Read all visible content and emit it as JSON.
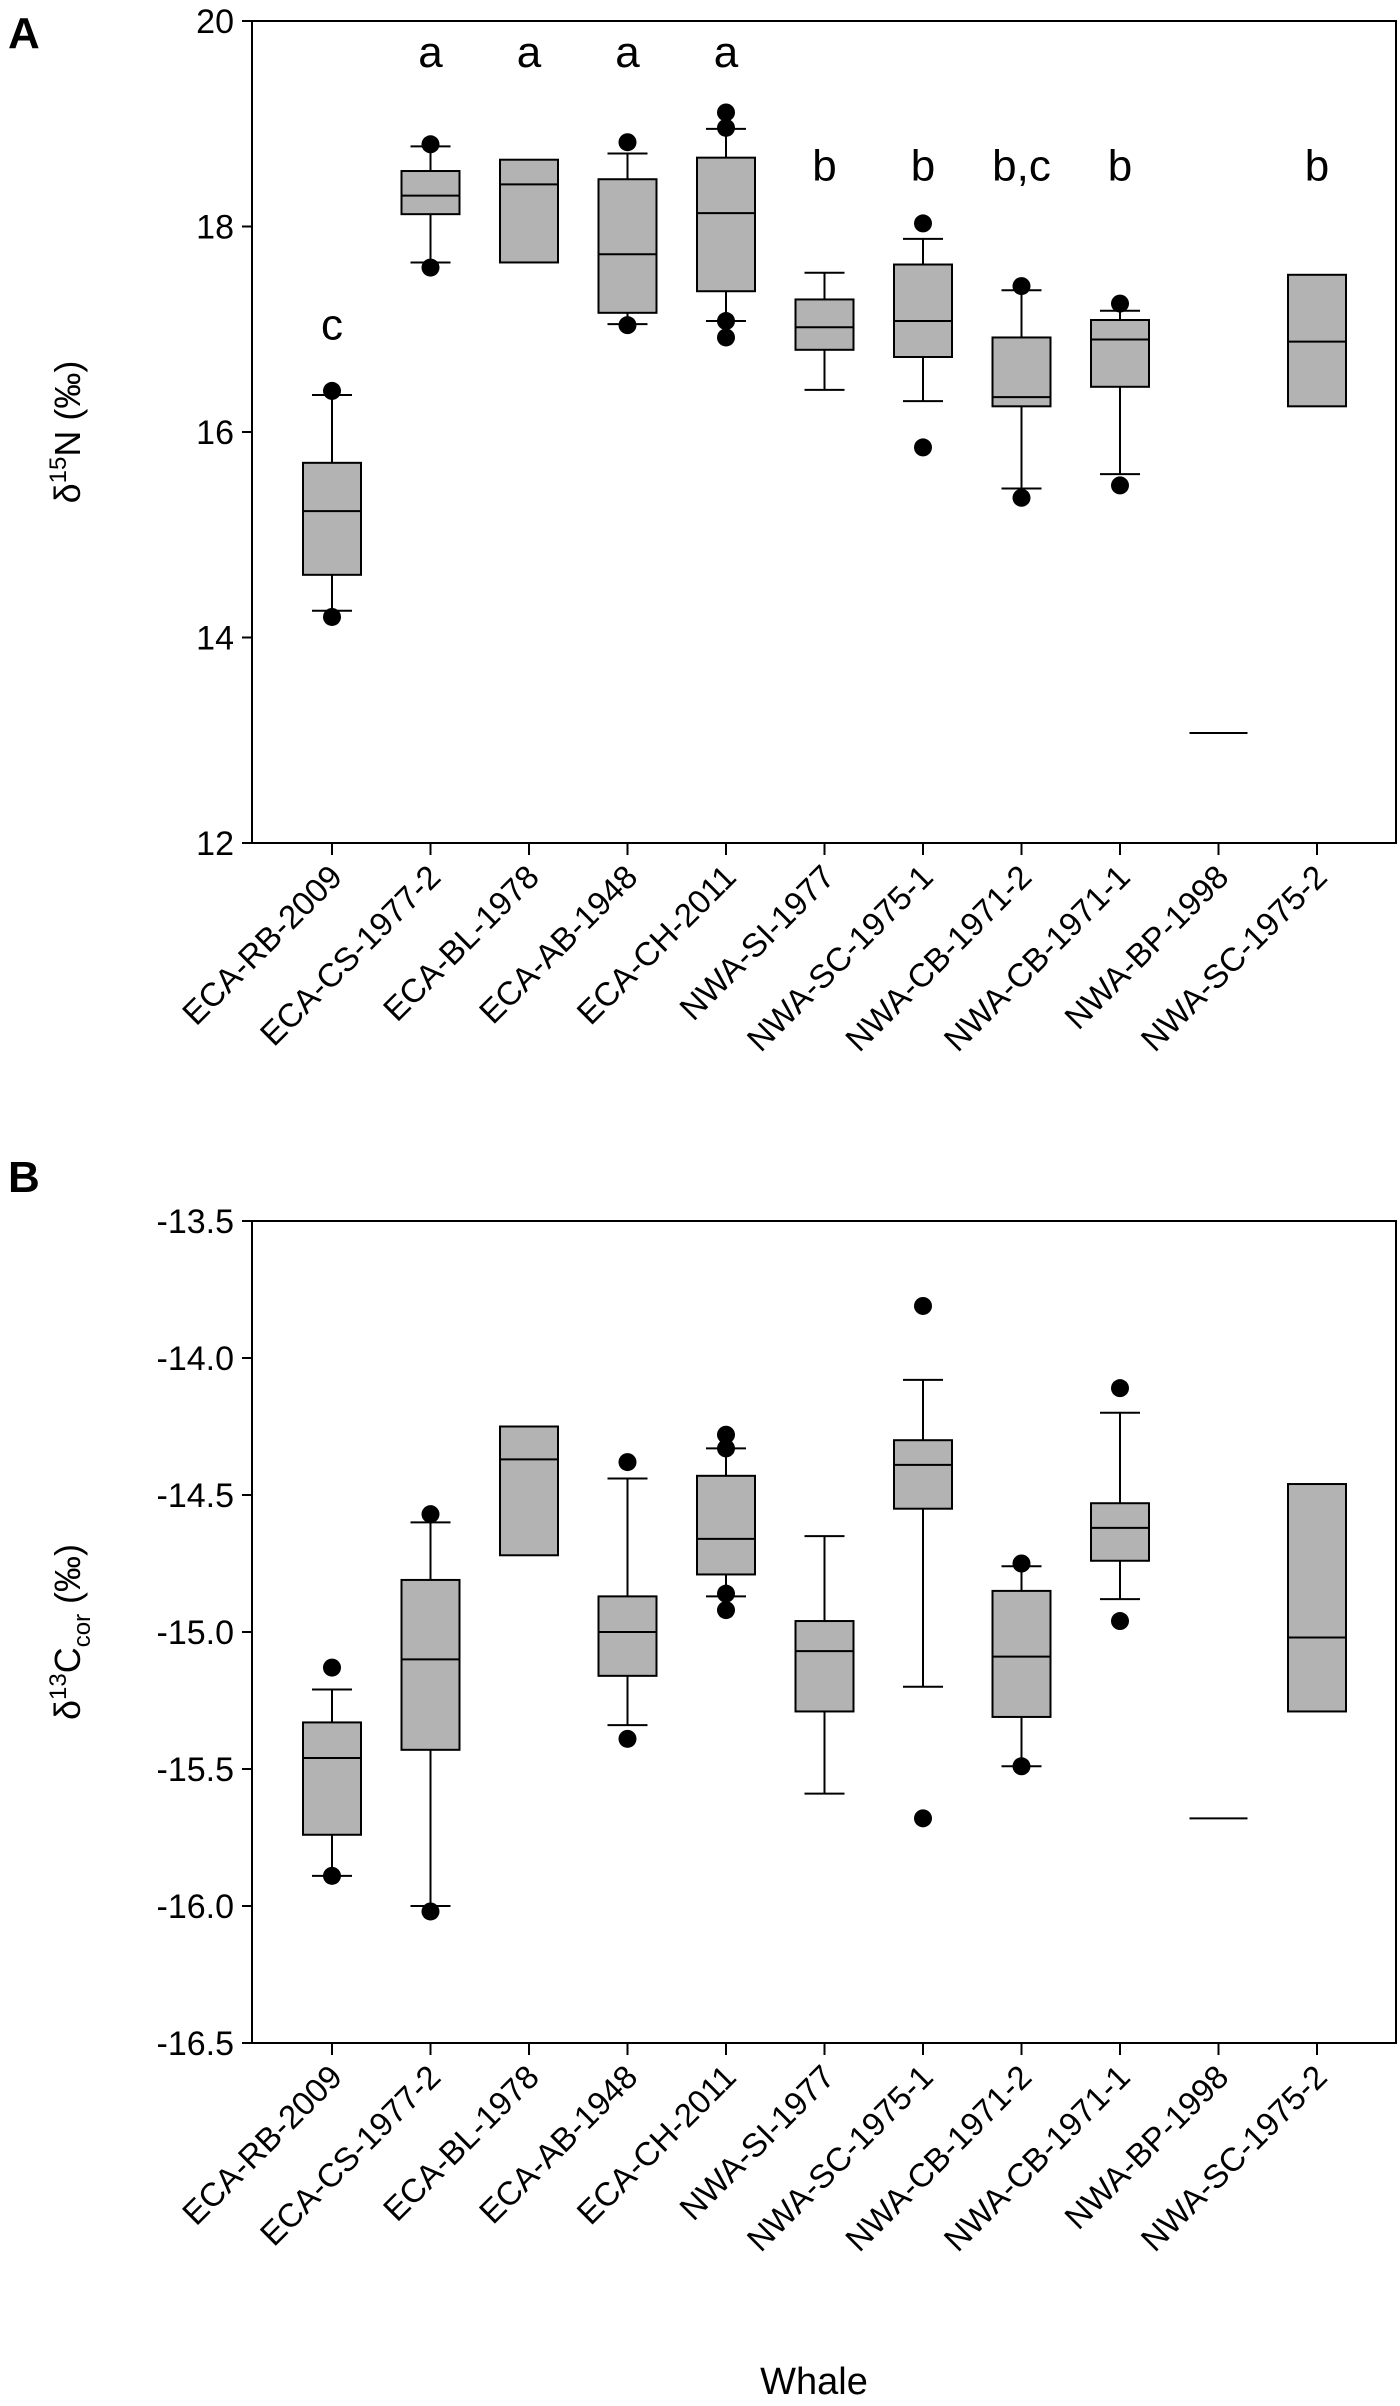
{
  "chart_data": [
    {
      "type": "box",
      "panel_label": "A",
      "ylabel": {
        "prefix": "δ",
        "sup": "15",
        "main": "N",
        "sub": "",
        "unit": " (‰)"
      },
      "ylim": [
        12,
        20
      ],
      "yticks": [
        12,
        14,
        16,
        18,
        20
      ],
      "ytick_labels": [
        "12",
        "14",
        "16",
        "18",
        "20"
      ],
      "grid": false,
      "categories": [
        "ECA-RB-2009",
        "ECA-CS-1977-2",
        "ECA-BL-1978",
        "ECA-AB-1948",
        "ECA-CH-2011",
        "NWA-SI-1977",
        "NWA-SC-1975-1",
        "NWA-CB-1971-2",
        "NWA-CB-1971-1",
        "NWA-BP-1998",
        "NWA-SC-1975-2"
      ],
      "group_letters": [
        "c",
        "a",
        "a",
        "a",
        "a",
        "b",
        "b",
        "b,c",
        "b",
        "",
        "b"
      ],
      "boxes": [
        {
          "whisker_low": 14.26,
          "q1": 14.61,
          "median": 15.23,
          "q3": 15.7,
          "whisker_high": 16.36,
          "outliers": [
            16.4,
            14.2
          ]
        },
        {
          "whisker_low": 17.65,
          "q1": 18.12,
          "median": 18.3,
          "q3": 18.54,
          "whisker_high": 18.78,
          "outliers": [
            18.8,
            17.6
          ]
        },
        {
          "whisker_low": null,
          "q1": 17.65,
          "median": 18.41,
          "q3": 18.65,
          "whisker_high": null,
          "outliers": []
        },
        {
          "whisker_low": 17.05,
          "q1": 17.16,
          "median": 17.73,
          "q3": 18.46,
          "whisker_high": 18.71,
          "outliers": [
            18.82,
            17.04
          ]
        },
        {
          "whisker_low": 17.08,
          "q1": 17.37,
          "median": 18.13,
          "q3": 18.67,
          "whisker_high": 18.95,
          "outliers": [
            19.11,
            18.96,
            17.08,
            16.92
          ]
        },
        {
          "whisker_low": 16.41,
          "q1": 16.8,
          "median": 17.02,
          "q3": 17.29,
          "whisker_high": 17.55,
          "outliers": []
        },
        {
          "whisker_low": 16.3,
          "q1": 16.73,
          "median": 17.08,
          "q3": 17.63,
          "whisker_high": 17.88,
          "outliers": [
            18.03,
            15.85
          ]
        },
        {
          "whisker_low": 15.45,
          "q1": 16.25,
          "median": 16.34,
          "q3": 16.92,
          "whisker_high": 17.38,
          "outliers": [
            17.42,
            15.36
          ]
        },
        {
          "whisker_low": 15.59,
          "q1": 16.44,
          "median": 16.9,
          "q3": 17.09,
          "whisker_high": 17.18,
          "outliers": [
            17.25,
            15.48
          ]
        },
        {
          "whisker_low": null,
          "q1": 13.07,
          "median": 13.07,
          "q3": 13.07,
          "whisker_high": null,
          "outliers": []
        },
        {
          "whisker_low": null,
          "q1": 16.25,
          "median": 16.88,
          "q3": 17.53,
          "whisker_high": null,
          "outliers": []
        }
      ]
    },
    {
      "type": "box",
      "panel_label": "B",
      "ylabel": {
        "prefix": "δ",
        "sup": "13",
        "main": "C",
        "sub": "cor",
        "unit": " (‰)"
      },
      "xlabel": "Whale",
      "ylim": [
        -16.5,
        -13.5
      ],
      "yticks": [
        -16.5,
        -16.0,
        -15.5,
        -15.0,
        -14.5,
        -14.0,
        -13.5
      ],
      "ytick_labels": [
        "-16.5",
        "-16.0",
        "-15.5",
        "-15.0",
        "-14.5",
        "-14.0",
        "-13.5"
      ],
      "grid": false,
      "categories": [
        "ECA-RB-2009",
        "ECA-CS-1977-2",
        "ECA-BL-1978",
        "ECA-AB-1948",
        "ECA-CH-2011",
        "NWA-SI-1977",
        "NWA-SC-1975-1",
        "NWA-CB-1971-2",
        "NWA-CB-1971-1",
        "NWA-BP-1998",
        "NWA-SC-1975-2"
      ],
      "boxes": [
        {
          "whisker_low": -15.89,
          "q1": -15.74,
          "median": -15.46,
          "q3": -15.33,
          "whisker_high": -15.21,
          "outliers": [
            -15.13,
            -15.89
          ]
        },
        {
          "whisker_low": -16.0,
          "q1": -15.43,
          "median": -15.1,
          "q3": -14.81,
          "whisker_high": -14.6,
          "outliers": [
            -14.57,
            -16.02
          ]
        },
        {
          "whisker_low": null,
          "q1": -14.72,
          "median": -14.37,
          "q3": -14.25,
          "whisker_high": null,
          "outliers": []
        },
        {
          "whisker_low": -15.34,
          "q1": -15.16,
          "median": -15.0,
          "q3": -14.87,
          "whisker_high": -14.44,
          "outliers": [
            -14.38,
            -15.39
          ]
        },
        {
          "whisker_low": -14.87,
          "q1": -14.79,
          "median": -14.66,
          "q3": -14.43,
          "whisker_high": -14.33,
          "outliers": [
            -14.28,
            -14.33,
            -14.86,
            -14.92
          ]
        },
        {
          "whisker_low": -15.59,
          "q1": -15.29,
          "median": -15.07,
          "q3": -14.96,
          "whisker_high": -14.65,
          "outliers": []
        },
        {
          "whisker_low": -15.2,
          "q1": -14.55,
          "median": -14.39,
          "q3": -14.3,
          "whisker_high": -14.08,
          "outliers": [
            -13.81,
            -15.68
          ]
        },
        {
          "whisker_low": -15.49,
          "q1": -15.31,
          "median": -15.09,
          "q3": -14.85,
          "whisker_high": -14.76,
          "outliers": [
            -14.75,
            -15.49
          ]
        },
        {
          "whisker_low": -14.88,
          "q1": -14.74,
          "median": -14.62,
          "q3": -14.53,
          "whisker_high": -14.2,
          "outliers": [
            -14.11,
            -14.96
          ]
        },
        {
          "whisker_low": null,
          "q1": -15.68,
          "median": -15.68,
          "q3": -15.68,
          "whisker_high": null,
          "outliers": []
        },
        {
          "whisker_low": null,
          "q1": -15.29,
          "median": -15.02,
          "q3": -14.46,
          "whisker_high": null,
          "outliers": []
        }
      ]
    }
  ],
  "colors": {
    "box_fill": "#b3b3b3",
    "line": "#000000"
  }
}
